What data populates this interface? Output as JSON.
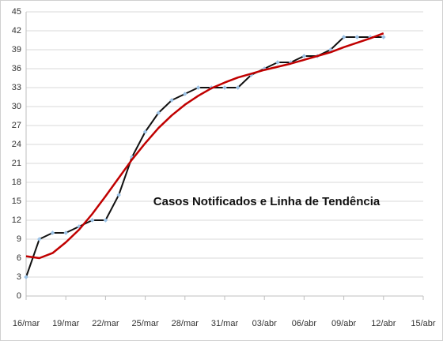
{
  "chart_data": {
    "type": "line",
    "annotation": "Casos Notificados e Linha de Tendência",
    "categories": [
      "16/mar",
      null,
      null,
      "19/mar",
      null,
      null,
      "22/mar",
      null,
      null,
      "25/mar",
      null,
      null,
      "28/mar",
      null,
      null,
      "31/mar",
      null,
      null,
      "03/abr",
      null,
      null,
      "06/abr",
      null,
      null,
      "09/abr",
      null,
      null,
      "12/abr",
      null,
      null,
      "15/abr"
    ],
    "series": [
      {
        "color": "#111111",
        "marker_color": "#9dc3e6",
        "markers": true,
        "values": [
          3,
          9,
          10,
          10,
          11,
          12,
          12,
          16,
          22,
          26,
          29,
          31,
          32,
          33,
          33,
          33,
          33,
          35,
          36,
          37,
          37,
          38,
          38,
          39,
          41,
          41,
          41,
          41,
          null,
          null,
          null
        ]
      },
      {
        "color": "#c00000",
        "markers": false,
        "values": [
          6.3,
          6.0,
          6.8,
          8.5,
          10.5,
          13,
          15.8,
          18.7,
          21.6,
          24.2,
          26.6,
          28.6,
          30.3,
          31.7,
          32.9,
          33.8,
          34.6,
          35.2,
          35.8,
          36.3,
          36.8,
          37.4,
          38,
          38.6,
          39.4,
          40.1,
          40.8,
          41.6,
          null,
          null,
          null
        ]
      }
    ],
    "ylim": [
      0,
      45
    ],
    "yticks": [
      0,
      3,
      6,
      9,
      12,
      15,
      18,
      21,
      24,
      27,
      30,
      33,
      36,
      39,
      42,
      45
    ],
    "grid": true
  }
}
